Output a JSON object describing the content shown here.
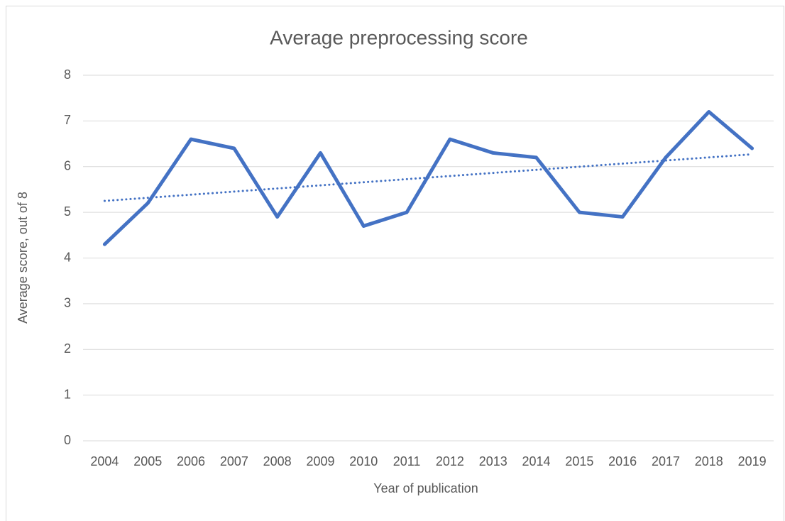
{
  "chart_data": {
    "type": "line",
    "title": "Average preprocessing score",
    "x_label": "Year of publication",
    "y_label": "Average score, out of 8",
    "categories": [
      "2004",
      "2005",
      "2006",
      "2007",
      "2008",
      "2009",
      "2010",
      "2011",
      "2012",
      "2013",
      "2014",
      "2015",
      "2016",
      "2017",
      "2018",
      "2019"
    ],
    "series": [
      {
        "color": "#4472c4",
        "values": [
          4.3,
          5.2,
          6.6,
          6.4,
          4.9,
          6.3,
          4.7,
          5.0,
          6.6,
          6.3,
          6.2,
          5.0,
          4.9,
          6.2,
          7.2,
          6.4
        ]
      }
    ],
    "trendline": {
      "color": "#4472c4",
      "style": "dotted",
      "values": [
        5.25,
        6.27
      ]
    },
    "ylim": [
      0,
      8
    ],
    "yticks": [
      0,
      1,
      2,
      3,
      4,
      5,
      6,
      7,
      8
    ],
    "grid": true
  }
}
